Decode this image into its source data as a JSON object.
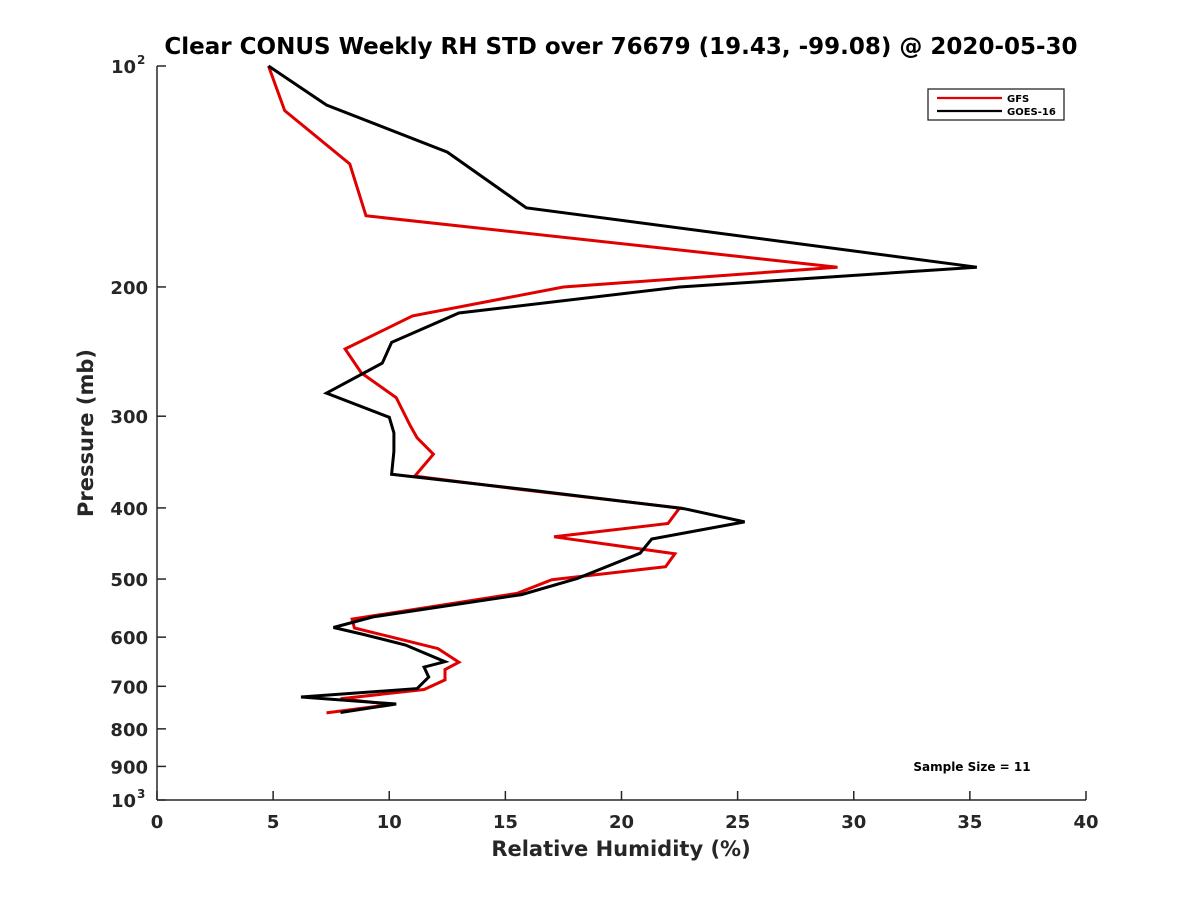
{
  "chart_data": {
    "type": "line",
    "title": "Clear CONUS Weekly RH STD over 76679 (19.43, -99.08) @ 2020-05-30",
    "xlabel": "Relative Humidity (%)",
    "ylabel": "Pressure (mb)",
    "xlim": [
      0,
      40
    ],
    "ylim": [
      100,
      1000
    ],
    "y_scale": "log",
    "y_reversed": true,
    "x_ticks": [
      "0",
      "5",
      "10",
      "15",
      "20",
      "25",
      "30",
      "35",
      "40"
    ],
    "y_ticks": [
      {
        "value": 100,
        "label": "10",
        "sup": "2"
      },
      {
        "value": 200,
        "label": "200",
        "sup": ""
      },
      {
        "value": 300,
        "label": "300",
        "sup": ""
      },
      {
        "value": 400,
        "label": "400",
        "sup": ""
      },
      {
        "value": 500,
        "label": "500",
        "sup": ""
      },
      {
        "value": 600,
        "label": "600",
        "sup": ""
      },
      {
        "value": 700,
        "label": "700",
        "sup": ""
      },
      {
        "value": 800,
        "label": "800",
        "sup": ""
      },
      {
        "value": 900,
        "label": "900",
        "sup": ""
      },
      {
        "value": 1000,
        "label": "10",
        "sup": "3"
      }
    ],
    "legend_position": "top-right",
    "grid": false,
    "annotation": "Sample Size = 11",
    "series": [
      {
        "name": "GFS",
        "color": "#e00000",
        "points": [
          [
            4.8,
            100
          ],
          [
            5.5,
            115
          ],
          [
            8.3,
            136
          ],
          [
            9.0,
            160
          ],
          [
            29.3,
            188
          ],
          [
            17.5,
            200
          ],
          [
            11.0,
            219
          ],
          [
            8.1,
            243
          ],
          [
            8.8,
            262
          ],
          [
            10.3,
            283
          ],
          [
            10.9,
            309
          ],
          [
            11.2,
            321
          ],
          [
            11.9,
            338
          ],
          [
            11.1,
            362
          ],
          [
            15.8,
            378
          ],
          [
            22.5,
            400
          ],
          [
            22.0,
            420
          ],
          [
            17.1,
            438
          ],
          [
            22.3,
            462
          ],
          [
            21.9,
            481
          ],
          [
            17.0,
            501
          ],
          [
            15.5,
            523
          ],
          [
            8.4,
            567
          ],
          [
            8.5,
            583
          ],
          [
            10.4,
            603
          ],
          [
            12.1,
            622
          ],
          [
            13.0,
            649
          ],
          [
            12.4,
            664
          ],
          [
            12.4,
            686
          ],
          [
            11.5,
            707
          ],
          [
            7.9,
            728
          ],
          [
            10.1,
            741
          ],
          [
            7.3,
            761
          ]
        ]
      },
      {
        "name": "GOES-16",
        "color": "#000000",
        "points": [
          [
            4.8,
            100
          ],
          [
            7.3,
            113
          ],
          [
            12.5,
            131
          ],
          [
            15.9,
            156
          ],
          [
            35.3,
            188
          ],
          [
            22.5,
            200
          ],
          [
            13.0,
            217
          ],
          [
            10.1,
            238
          ],
          [
            9.7,
            254
          ],
          [
            7.3,
            279
          ],
          [
            10.0,
            301
          ],
          [
            10.2,
            316
          ],
          [
            10.2,
            335
          ],
          [
            10.1,
            360
          ],
          [
            16.0,
            378
          ],
          [
            22.7,
            401
          ],
          [
            25.3,
            418
          ],
          [
            21.3,
            441
          ],
          [
            20.8,
            461
          ],
          [
            18.1,
            499
          ],
          [
            15.7,
            525
          ],
          [
            9.3,
            563
          ],
          [
            7.6,
            582
          ],
          [
            8.9,
            595
          ],
          [
            10.7,
            615
          ],
          [
            12.4,
            648
          ],
          [
            11.5,
            659
          ],
          [
            11.7,
            680
          ],
          [
            11.2,
            705
          ],
          [
            6.2,
            724
          ],
          [
            10.3,
            740
          ],
          [
            7.9,
            760
          ]
        ]
      }
    ]
  }
}
